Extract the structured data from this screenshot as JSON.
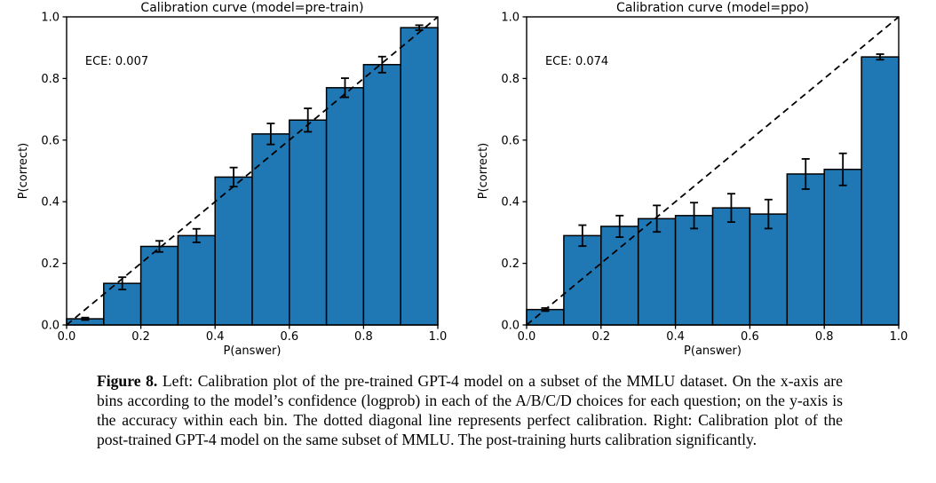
{
  "figure": {
    "caption_label": "Figure 8.",
    "caption_body": " Left: Calibration plot of the pre-trained GPT-4 model on a subset of the MMLU dataset. On the x-axis are bins according to the model’s confidence (logprob) in each of the A/B/C/D choices for each question; on the y-axis is the accuracy within each bin. The dotted diagonal line represents perfect calibration. Right: Calibration plot of the post-trained GPT-4 model on the same subset of MMLU. The post-training hurts calibration significantly."
  },
  "chart_data": [
    {
      "type": "bar",
      "title": "Calibration curve (model=pre-train)",
      "annotation": "ECE: 0.007",
      "xlabel": "P(answer)",
      "ylabel": "P(correct)",
      "xlim": [
        0.0,
        1.0
      ],
      "ylim": [
        0.0,
        1.0
      ],
      "xtick_labels": [
        "0.0",
        "0.2",
        "0.4",
        "0.6",
        "0.8",
        "1.0"
      ],
      "ytick_labels": [
        "0.0",
        "0.2",
        "0.4",
        "0.6",
        "0.8",
        "1.0"
      ],
      "tick_values": [
        0.0,
        0.2,
        0.4,
        0.6,
        0.8,
        1.0
      ],
      "bin_edges": [
        0.0,
        0.1,
        0.2,
        0.3,
        0.4,
        0.5,
        0.6,
        0.7,
        0.8,
        0.9
      ],
      "bin_width": 0.1,
      "values": [
        0.02,
        0.135,
        0.255,
        0.29,
        0.48,
        0.62,
        0.665,
        0.77,
        0.845,
        0.965
      ],
      "errors": [
        0.004,
        0.02,
        0.018,
        0.022,
        0.031,
        0.034,
        0.038,
        0.031,
        0.026,
        0.008
      ],
      "bar_color": "#1f77b4",
      "edge_color": "#000000",
      "diagonal_line": "dashed y=x (perfect calibration)",
      "grid": false,
      "legend": "none"
    },
    {
      "type": "bar",
      "title": "Calibration curve (model=ppo)",
      "annotation": "ECE: 0.074",
      "xlabel": "P(answer)",
      "ylabel": "P(correct)",
      "xlim": [
        0.0,
        1.0
      ],
      "ylim": [
        0.0,
        1.0
      ],
      "xtick_labels": [
        "0.0",
        "0.2",
        "0.4",
        "0.6",
        "0.8",
        "1.0"
      ],
      "ytick_labels": [
        "0.0",
        "0.2",
        "0.4",
        "0.6",
        "0.8",
        "1.0"
      ],
      "tick_values": [
        0.0,
        0.2,
        0.4,
        0.6,
        0.8,
        1.0
      ],
      "bin_edges": [
        0.0,
        0.1,
        0.2,
        0.3,
        0.4,
        0.5,
        0.6,
        0.7,
        0.8,
        0.9
      ],
      "bin_width": 0.1,
      "values": [
        0.05,
        0.29,
        0.32,
        0.345,
        0.355,
        0.38,
        0.36,
        0.49,
        0.505,
        0.87
      ],
      "errors": [
        0.005,
        0.034,
        0.035,
        0.043,
        0.042,
        0.046,
        0.047,
        0.049,
        0.052,
        0.009
      ],
      "bar_color": "#1f77b4",
      "edge_color": "#000000",
      "diagonal_line": "dashed y=x (perfect calibration)",
      "grid": false,
      "legend": "none"
    }
  ]
}
